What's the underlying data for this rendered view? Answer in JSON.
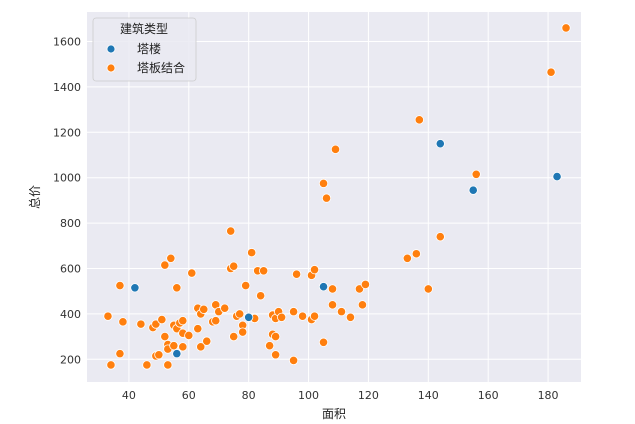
{
  "chart_data": {
    "type": "scatter",
    "xlabel": "面积",
    "ylabel": "总价",
    "xlim": [
      26,
      191
    ],
    "ylim": [
      100,
      1730
    ],
    "x_ticks": [
      40,
      60,
      80,
      100,
      120,
      140,
      160,
      180
    ],
    "y_ticks": [
      200,
      400,
      600,
      800,
      1000,
      1200,
      1400,
      1600
    ],
    "grid": true,
    "legend": {
      "title": "建筑类型",
      "placement": "top-left"
    },
    "series": [
      {
        "name": "塔楼",
        "color": "#1f77b4",
        "points": [
          [
            42,
            515
          ],
          [
            56,
            225
          ],
          [
            80,
            385
          ],
          [
            105,
            520
          ],
          [
            144,
            1150
          ],
          [
            155,
            945
          ],
          [
            183,
            1005
          ]
        ]
      },
      {
        "name": "塔板结合",
        "color": "#ff7f0e",
        "points": [
          [
            33,
            390
          ],
          [
            34,
            175
          ],
          [
            37,
            225
          ],
          [
            37,
            525
          ],
          [
            38,
            365
          ],
          [
            44,
            355
          ],
          [
            46,
            175
          ],
          [
            48,
            340
          ],
          [
            49,
            215
          ],
          [
            49,
            355
          ],
          [
            50,
            220
          ],
          [
            51,
            375
          ],
          [
            52,
            615
          ],
          [
            52,
            300
          ],
          [
            53,
            265
          ],
          [
            53,
            175
          ],
          [
            53,
            245
          ],
          [
            54,
            645
          ],
          [
            55,
            260
          ],
          [
            55,
            350
          ],
          [
            56,
            335
          ],
          [
            56,
            515
          ],
          [
            57,
            360
          ],
          [
            58,
            315
          ],
          [
            58,
            370
          ],
          [
            58,
            255
          ],
          [
            60,
            305
          ],
          [
            61,
            580
          ],
          [
            63,
            335
          ],
          [
            63,
            425
          ],
          [
            64,
            255
          ],
          [
            64,
            400
          ],
          [
            65,
            420
          ],
          [
            66,
            280
          ],
          [
            68,
            365
          ],
          [
            69,
            370
          ],
          [
            69,
            440
          ],
          [
            70,
            410
          ],
          [
            72,
            425
          ],
          [
            74,
            600
          ],
          [
            74,
            765
          ],
          [
            75,
            610
          ],
          [
            75,
            300
          ],
          [
            76,
            390
          ],
          [
            77,
            400
          ],
          [
            78,
            350
          ],
          [
            78,
            320
          ],
          [
            79,
            525
          ],
          [
            81,
            670
          ],
          [
            82,
            380
          ],
          [
            83,
            590
          ],
          [
            84,
            480
          ],
          [
            85,
            590
          ],
          [
            87,
            260
          ],
          [
            88,
            310
          ],
          [
            88,
            395
          ],
          [
            89,
            220
          ],
          [
            89,
            300
          ],
          [
            89,
            380
          ],
          [
            90,
            410
          ],
          [
            91,
            385
          ],
          [
            95,
            410
          ],
          [
            95,
            195
          ],
          [
            96,
            575
          ],
          [
            98,
            390
          ],
          [
            101,
            375
          ],
          [
            101,
            570
          ],
          [
            102,
            390
          ],
          [
            102,
            595
          ],
          [
            105,
            275
          ],
          [
            105,
            975
          ],
          [
            106,
            910
          ],
          [
            108,
            510
          ],
          [
            108,
            440
          ],
          [
            109,
            1125
          ],
          [
            111,
            410
          ],
          [
            114,
            385
          ],
          [
            117,
            510
          ],
          [
            118,
            440
          ],
          [
            119,
            530
          ],
          [
            133,
            645
          ],
          [
            136,
            665
          ],
          [
            137,
            1255
          ],
          [
            140,
            510
          ],
          [
            144,
            740
          ],
          [
            156,
            1015
          ],
          [
            181,
            1465
          ],
          [
            186,
            1660
          ]
        ]
      }
    ]
  }
}
